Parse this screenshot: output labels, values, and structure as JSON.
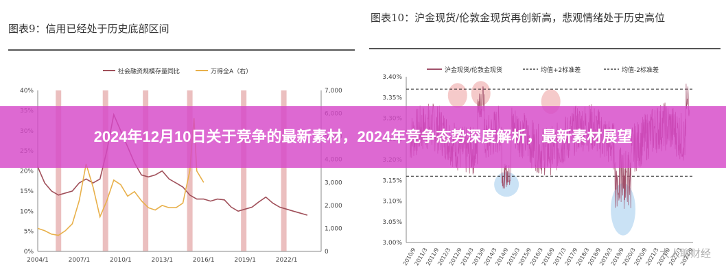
{
  "banner": {
    "title": "2024年12月10日关于竞争的最新素材，2024年竞争态势深度解析，最新素材展望"
  },
  "watermark": "大人聊财经",
  "chart_data": [
    {
      "type": "line",
      "title": "图表9：信用已经处于历史底部区间",
      "series": [
        {
          "name": "社会融资规模存量同比",
          "axis": "left",
          "color": "#a0505a",
          "x": [
            2004.0,
            2004.5,
            2005.0,
            2005.5,
            2006.0,
            2006.5,
            2007.0,
            2007.5,
            2008.0,
            2008.5,
            2009.0,
            2009.5,
            2010.0,
            2010.5,
            2011.0,
            2011.5,
            2012.0,
            2012.5,
            2013.0,
            2013.5,
            2014.0,
            2014.5,
            2015.0,
            2015.5,
            2016.0,
            2016.5,
            2017.0,
            2017.5,
            2018.0,
            2018.5,
            2019.0,
            2019.5,
            2020.0,
            2020.5,
            2021.0,
            2021.5,
            2022.0,
            2022.5,
            2023.0,
            2023.5
          ],
          "values": [
            21,
            17,
            15,
            14,
            14.5,
            15,
            17,
            18,
            17,
            18,
            25,
            34,
            30,
            26,
            22,
            19,
            18.5,
            19,
            20,
            18,
            17,
            16,
            14,
            13,
            13,
            12.5,
            13,
            12.8,
            11,
            10,
            10.5,
            11,
            12.3,
            13.5,
            12,
            11,
            10.5,
            10,
            9.5,
            9
          ]
        },
        {
          "name": "万得全A（右）",
          "axis": "right",
          "color": "#e8b04a",
          "x": [
            2004.0,
            2004.5,
            2005.0,
            2005.5,
            2006.0,
            2006.5,
            2007.0,
            2007.5,
            2008.0,
            2008.5,
            2009.0,
            2009.5,
            2010.0,
            2010.5,
            2011.0,
            2011.5,
            2012.0,
            2012.5,
            2013.0,
            2013.5,
            2014.0,
            2014.5,
            2015.0,
            2015.3,
            2015.5,
            2016.0
          ],
          "values": [
            1000,
            900,
            750,
            700,
            900,
            1200,
            2200,
            3800,
            2800,
            1500,
            2200,
            3100,
            2900,
            2400,
            2600,
            2200,
            1900,
            1800,
            2000,
            1900,
            1900,
            2100,
            3500,
            5800,
            3500,
            3000
          ]
        }
      ],
      "shaded_x": [
        2005.5,
        2008.9,
        2011.8,
        2015.0,
        2018.9,
        2021.8
      ],
      "xticks": [
        "2004/1",
        "2007/1",
        "2010/1",
        "2013/1",
        "2016/1",
        "2019/1",
        "2022/1"
      ],
      "yticks_left": [
        "0%",
        "5%",
        "10%",
        "15%",
        "20%",
        "25%",
        "30%",
        "35%",
        "40%"
      ],
      "yticks_right": [
        "0",
        "1,000",
        "2,000",
        "3,000",
        "4,000",
        "5,000",
        "6,000",
        "7,000"
      ],
      "ylim_left": [
        0,
        40
      ],
      "ylim_right": [
        0,
        7000
      ],
      "xlim": [
        2004,
        2024.5
      ]
    },
    {
      "type": "line",
      "title": "图表10：沪金现货/伦敦金现货再创新高，悲观情绪处于历史高位",
      "series": [
        {
          "name": "沪金现货/伦敦金现货",
          "color": "#a0506a"
        },
        {
          "name": "均值+2标准差",
          "color": "#222",
          "dashed": true,
          "value": 3.37
        },
        {
          "name": "均值-2标准差",
          "color": "#222",
          "dashed": true,
          "value": 3.16
        }
      ],
      "highlights": [
        {
          "x": 2012.8,
          "y": 3.355,
          "color": "#f2b8b8"
        },
        {
          "x": 2013.8,
          "y": 3.36,
          "color": "#f2b8b8"
        },
        {
          "x": 2014.9,
          "y": 3.14,
          "color": "#b8d8f2"
        },
        {
          "x": 2016.8,
          "y": 3.34,
          "color": "#f2b8b8"
        },
        {
          "x": 2019.9,
          "y": 3.08,
          "color": "#b8d8f2"
        }
      ],
      "xticks": [
        "2010/9",
        "2011/3",
        "2011/9",
        "2012/3",
        "2012/9",
        "2013/3",
        "2013/9",
        "2014/3",
        "2014/9",
        "2015/3",
        "2015/9",
        "2016/3",
        "2016/9",
        "2017/3",
        "2017/9",
        "2018/3",
        "2018/9",
        "2019/3",
        "2019/9",
        "2020/3",
        "2020/9",
        "2021/3",
        "2021/9",
        "2022/3",
        "2022/9"
      ],
      "yticks": [
        "3.00%",
        "3.05%",
        "3.10%",
        "3.15%",
        "3.20%",
        "3.25%",
        "3.30%",
        "3.35%",
        "3.40%"
      ],
      "ylim": [
        3.0,
        3.4
      ],
      "xlim": [
        2010.6,
        2022.9
      ]
    }
  ]
}
